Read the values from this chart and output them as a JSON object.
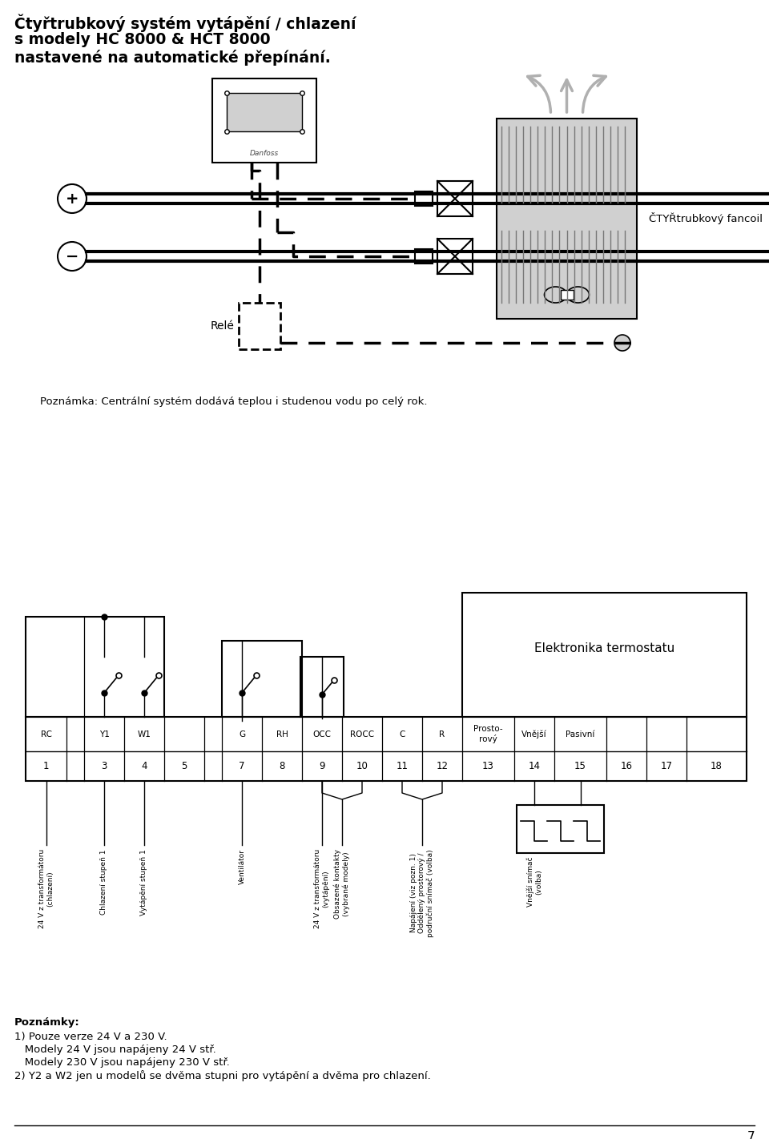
{
  "title_line1": "Čtyřtrubkový systém vytápění / chlazení",
  "title_line2": "s modely HC 8000 & HCT 8000",
  "title_line3": "nastavené na automatické přepínání.",
  "rele_label": "Relé",
  "fancoil_label": "ČTYŘtrubkový fancoil",
  "poznamka_fancoil": "Poznámka: Centrální systém dodává teplou i studenou vodu po celý rok.",
  "elektronika_label": "Elektronika termostatu",
  "terminal_headers": [
    "RC",
    "",
    "Y1",
    "W1",
    "",
    "",
    "G",
    "RH",
    "OCC",
    "ROCC",
    "C",
    "R",
    "Prosto-\nrový",
    "Vnější",
    "Pasivní",
    "",
    "",
    ""
  ],
  "terminal_numbers": [
    "1",
    "",
    "3",
    "4",
    "5",
    "",
    "7",
    "8",
    "9",
    "10",
    "11",
    "12",
    "13",
    "14",
    "15",
    "16",
    "17",
    "18"
  ],
  "poznamky_header": "Poznámky:",
  "poznamka1": "1) Pouze verze 24 V a 230 V.",
  "poznamka1a": "   Modely 24 V jsou napájeny 24 V stř.",
  "poznamka1b": "   Modely 230 V jsou napájeny 230 V stř.",
  "poznamka2": "2) Y2 a W2 jen u modelů se dvěma stupni pro vytápění a dvěma pro chlazení.",
  "page_number": "7",
  "bg_color": "#ffffff",
  "line_color": "#000000",
  "text_color": "#000000",
  "gray_color": "#b0b0b0",
  "light_gray": "#d0d0d0"
}
